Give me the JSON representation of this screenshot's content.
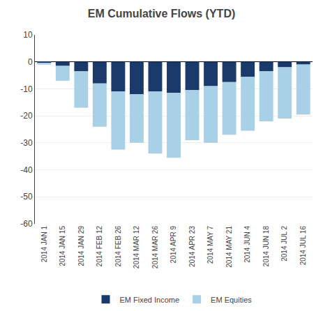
{
  "chart_data": {
    "type": "bar",
    "title": "EM Cumulative Flows (YTD)",
    "categories": [
      "2014 JAN 1",
      "2014 JAN 15",
      "2014 JAN 29",
      "2014 FEB 12",
      "2014 FEB 26",
      "2014 MAR 12",
      "2014 MAR 26",
      "2014 APR 9",
      "2014 APR 23",
      "2014 MAY 7",
      "2014 MAY 21",
      "2014 JUN 4",
      "2014 JUN 18",
      "2014 JUL 2",
      "2014 JUL 16"
    ],
    "series": [
      {
        "name": "EM Fixed Income",
        "color": "#1a3a6b",
        "values": [
          -0.5,
          -1.5,
          -3.5,
          -8.0,
          -11.0,
          -12.0,
          -11.0,
          -11.5,
          -10.5,
          -9.0,
          -7.5,
          -5.5,
          -3.5,
          -2.0,
          -1.0
        ]
      },
      {
        "name": "EM Equities",
        "color": "#a8d0e6",
        "values": [
          -0.5,
          -5.5,
          -13.5,
          -16.0,
          -21.5,
          -18.0,
          -23.0,
          -24.0,
          -18.5,
          -21.0,
          -19.5,
          -20.0,
          -18.5,
          -19.0,
          -18.5
        ]
      }
    ],
    "stacked": true,
    "ylim": [
      -60,
      10
    ],
    "yticks": [
      -60,
      -50,
      -40,
      -30,
      -20,
      -10,
      0,
      10
    ],
    "grid": true,
    "legend": "bottom"
  }
}
